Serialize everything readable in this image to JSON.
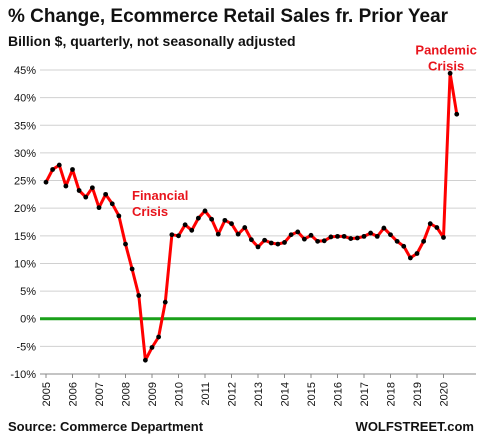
{
  "header": {
    "title": "% Change, Ecommerce Retail Sales fr. Prior Year",
    "subtitle": "Billion $, quarterly, not seasonally adjusted"
  },
  "footer": {
    "source": "Source: Commerce Department",
    "brand": "WOLFSTREET.com"
  },
  "colors": {
    "line": "#ff0000",
    "marker": "#000000",
    "zero_line": "#1aa01a",
    "grid": "#d0d0d0",
    "annotation": "#e8141c"
  },
  "chart_data": {
    "type": "line",
    "title": "% Change, Ecommerce Retail Sales fr. Prior Year",
    "subtitle": "Billion $, quarterly, not seasonally adjusted",
    "xlabel": "",
    "ylabel": "",
    "ylim": [
      -10,
      45
    ],
    "grid": "horizontal",
    "legend": "none",
    "x_tick_labels": [
      "2005",
      "2006",
      "2007",
      "2008",
      "2009",
      "2010",
      "2011",
      "2012",
      "2013",
      "2014",
      "2015",
      "2016",
      "2017",
      "2018",
      "2019",
      "2020"
    ],
    "y_tick_labels": [
      "-10%",
      "-5%",
      "0%",
      "5%",
      "10%",
      "15%",
      "20%",
      "25%",
      "30%",
      "35%",
      "40%",
      "45%"
    ],
    "y_ticks": [
      -10,
      -5,
      0,
      5,
      10,
      15,
      20,
      25,
      30,
      35,
      40,
      45
    ],
    "annotations": [
      {
        "lines": [
          "Financial",
          "Crisis"
        ],
        "near_period": "2009-Q1"
      },
      {
        "lines": [
          "Pandemic",
          "Crisis"
        ],
        "near_period": "2020-Q2"
      }
    ],
    "series": [
      {
        "x": [
          "2005-Q1",
          "2005-Q2",
          "2005-Q3",
          "2005-Q4",
          "2006-Q1",
          "2006-Q2",
          "2006-Q3",
          "2006-Q4",
          "2007-Q1",
          "2007-Q2",
          "2007-Q3",
          "2007-Q4",
          "2008-Q1",
          "2008-Q2",
          "2008-Q3",
          "2008-Q4",
          "2009-Q1",
          "2009-Q2",
          "2009-Q3",
          "2009-Q4",
          "2010-Q1",
          "2010-Q2",
          "2010-Q3",
          "2010-Q4",
          "2011-Q1",
          "2011-Q2",
          "2011-Q3",
          "2011-Q4",
          "2012-Q1",
          "2012-Q2",
          "2012-Q3",
          "2012-Q4",
          "2013-Q1",
          "2013-Q2",
          "2013-Q3",
          "2013-Q4",
          "2014-Q1",
          "2014-Q2",
          "2014-Q3",
          "2014-Q4",
          "2015-Q1",
          "2015-Q2",
          "2015-Q3",
          "2015-Q4",
          "2016-Q1",
          "2016-Q2",
          "2016-Q3",
          "2016-Q4",
          "2017-Q1",
          "2017-Q2",
          "2017-Q3",
          "2017-Q4",
          "2018-Q1",
          "2018-Q2",
          "2018-Q3",
          "2018-Q4",
          "2019-Q1",
          "2019-Q2",
          "2019-Q3",
          "2019-Q4",
          "2020-Q1",
          "2020-Q2",
          "2020-Q3"
        ],
        "values": [
          24.7,
          27.0,
          27.8,
          24.0,
          27.0,
          23.2,
          22.0,
          23.7,
          20.1,
          22.5,
          20.8,
          18.6,
          13.5,
          9.0,
          4.2,
          -7.5,
          -5.2,
          -3.3,
          3.0,
          15.2,
          15.0,
          17.0,
          16.0,
          18.2,
          19.5,
          18.0,
          15.3,
          17.8,
          17.2,
          15.3,
          16.5,
          14.3,
          13.0,
          14.2,
          13.7,
          13.5,
          13.8,
          15.2,
          15.7,
          14.4,
          15.1,
          14.0,
          14.1,
          14.8,
          14.9,
          14.9,
          14.5,
          14.6,
          14.9,
          15.5,
          14.9,
          16.4,
          15.2,
          14.0,
          13.1,
          11.0,
          11.8,
          14.0,
          17.2,
          16.5,
          14.7,
          44.4,
          37.0
        ]
      }
    ]
  }
}
